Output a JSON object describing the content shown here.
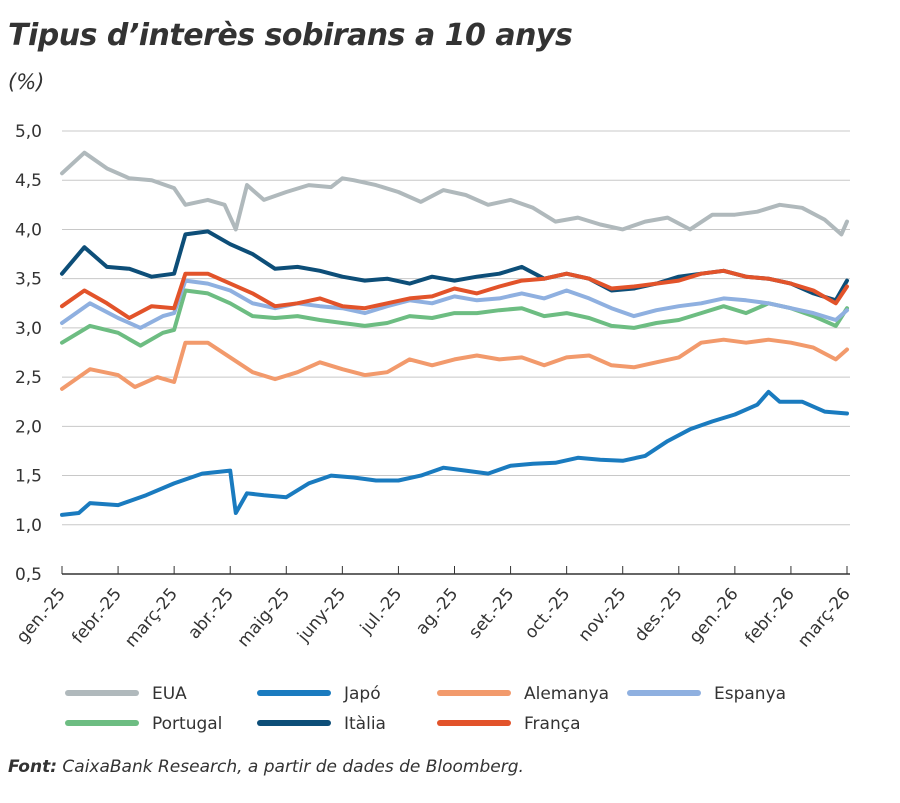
{
  "chart_data": {
    "type": "line",
    "title": "Tipus d’interès sobirans a 10 anys",
    "ylabel": "(%)",
    "xlabel": "",
    "ylim": [
      0.5,
      5.0
    ],
    "yticks": [
      "5,0",
      "4,5",
      "4,0",
      "3,5",
      "3,0",
      "2,5",
      "2,0",
      "1,5",
      "1,0",
      "0,5"
    ],
    "ytick_values": [
      5.0,
      4.5,
      4.0,
      3.5,
      3.0,
      2.5,
      2.0,
      1.5,
      1.0,
      0.5
    ],
    "xticks": [
      "gen.-25",
      "febr.-25",
      "març-25",
      "abr.-25",
      "maig-25",
      "juny-25",
      "jul.-25",
      "ag.-25",
      "set.-25",
      "oct.-25",
      "nov.-25",
      "des.-25",
      "gen.-26",
      "febr.-26",
      "març-26"
    ],
    "xlim": [
      0,
      14
    ],
    "grid": "horizontal",
    "legend_position": "bottom",
    "series": [
      {
        "name": "EUA",
        "color": "#b0b9bc",
        "points": [
          [
            0,
            4.57
          ],
          [
            0.4,
            4.78
          ],
          [
            0.8,
            4.62
          ],
          [
            1.2,
            4.52
          ],
          [
            1.6,
            4.5
          ],
          [
            2.0,
            4.42
          ],
          [
            2.2,
            4.25
          ],
          [
            2.6,
            4.3
          ],
          [
            2.9,
            4.25
          ],
          [
            3.1,
            4.0
          ],
          [
            3.3,
            4.45
          ],
          [
            3.6,
            4.3
          ],
          [
            4.0,
            4.38
          ],
          [
            4.4,
            4.45
          ],
          [
            4.8,
            4.43
          ],
          [
            5.0,
            4.52
          ],
          [
            5.2,
            4.5
          ],
          [
            5.6,
            4.45
          ],
          [
            6.0,
            4.38
          ],
          [
            6.4,
            4.28
          ],
          [
            6.8,
            4.4
          ],
          [
            7.2,
            4.35
          ],
          [
            7.6,
            4.25
          ],
          [
            8.0,
            4.3
          ],
          [
            8.4,
            4.22
          ],
          [
            8.8,
            4.08
          ],
          [
            9.2,
            4.12
          ],
          [
            9.6,
            4.05
          ],
          [
            10.0,
            4.0
          ],
          [
            10.4,
            4.08
          ],
          [
            10.8,
            4.12
          ],
          [
            11.2,
            4.0
          ],
          [
            11.6,
            4.15
          ],
          [
            12.0,
            4.15
          ],
          [
            12.4,
            4.18
          ],
          [
            12.8,
            4.25
          ],
          [
            13.2,
            4.22
          ],
          [
            13.6,
            4.1
          ],
          [
            13.9,
            3.95
          ],
          [
            14.0,
            4.08
          ]
        ]
      },
      {
        "name": "Japó",
        "color": "#1a7bbf",
        "points": [
          [
            0,
            1.1
          ],
          [
            0.3,
            1.12
          ],
          [
            0.5,
            1.22
          ],
          [
            1.0,
            1.2
          ],
          [
            1.5,
            1.3
          ],
          [
            2.0,
            1.42
          ],
          [
            2.5,
            1.52
          ],
          [
            3.0,
            1.55
          ],
          [
            3.1,
            1.12
          ],
          [
            3.3,
            1.32
          ],
          [
            3.6,
            1.3
          ],
          [
            4.0,
            1.28
          ],
          [
            4.4,
            1.42
          ],
          [
            4.8,
            1.5
          ],
          [
            5.2,
            1.48
          ],
          [
            5.6,
            1.45
          ],
          [
            6.0,
            1.45
          ],
          [
            6.4,
            1.5
          ],
          [
            6.8,
            1.58
          ],
          [
            7.2,
            1.55
          ],
          [
            7.6,
            1.52
          ],
          [
            8.0,
            1.6
          ],
          [
            8.4,
            1.62
          ],
          [
            8.8,
            1.63
          ],
          [
            9.2,
            1.68
          ],
          [
            9.6,
            1.66
          ],
          [
            10.0,
            1.65
          ],
          [
            10.4,
            1.7
          ],
          [
            10.8,
            1.85
          ],
          [
            11.2,
            1.97
          ],
          [
            11.6,
            2.05
          ],
          [
            12.0,
            2.12
          ],
          [
            12.4,
            2.22
          ],
          [
            12.6,
            2.35
          ],
          [
            12.8,
            2.25
          ],
          [
            13.2,
            2.25
          ],
          [
            13.6,
            2.15
          ],
          [
            14.0,
            2.13
          ]
        ]
      },
      {
        "name": "Alemanya",
        "color": "#f29a6c",
        "points": [
          [
            0,
            2.38
          ],
          [
            0.5,
            2.58
          ],
          [
            1.0,
            2.52
          ],
          [
            1.3,
            2.4
          ],
          [
            1.7,
            2.5
          ],
          [
            2.0,
            2.45
          ],
          [
            2.2,
            2.85
          ],
          [
            2.6,
            2.85
          ],
          [
            3.0,
            2.7
          ],
          [
            3.4,
            2.55
          ],
          [
            3.8,
            2.48
          ],
          [
            4.2,
            2.55
          ],
          [
            4.6,
            2.65
          ],
          [
            5.0,
            2.58
          ],
          [
            5.4,
            2.52
          ],
          [
            5.8,
            2.55
          ],
          [
            6.2,
            2.68
          ],
          [
            6.6,
            2.62
          ],
          [
            7.0,
            2.68
          ],
          [
            7.4,
            2.72
          ],
          [
            7.8,
            2.68
          ],
          [
            8.2,
            2.7
          ],
          [
            8.6,
            2.62
          ],
          [
            9.0,
            2.7
          ],
          [
            9.4,
            2.72
          ],
          [
            9.8,
            2.62
          ],
          [
            10.2,
            2.6
          ],
          [
            10.6,
            2.65
          ],
          [
            11.0,
            2.7
          ],
          [
            11.4,
            2.85
          ],
          [
            11.8,
            2.88
          ],
          [
            12.2,
            2.85
          ],
          [
            12.6,
            2.88
          ],
          [
            13.0,
            2.85
          ],
          [
            13.4,
            2.8
          ],
          [
            13.8,
            2.68
          ],
          [
            14.0,
            2.78
          ]
        ]
      },
      {
        "name": "Espanya",
        "color": "#8fb0e0",
        "points": [
          [
            0,
            3.05
          ],
          [
            0.5,
            3.25
          ],
          [
            1.0,
            3.1
          ],
          [
            1.4,
            3.0
          ],
          [
            1.8,
            3.12
          ],
          [
            2.0,
            3.15
          ],
          [
            2.2,
            3.48
          ],
          [
            2.6,
            3.45
          ],
          [
            3.0,
            3.38
          ],
          [
            3.4,
            3.25
          ],
          [
            3.8,
            3.2
          ],
          [
            4.2,
            3.25
          ],
          [
            4.6,
            3.22
          ],
          [
            5.0,
            3.2
          ],
          [
            5.4,
            3.15
          ],
          [
            5.8,
            3.22
          ],
          [
            6.2,
            3.28
          ],
          [
            6.6,
            3.25
          ],
          [
            7.0,
            3.32
          ],
          [
            7.4,
            3.28
          ],
          [
            7.8,
            3.3
          ],
          [
            8.2,
            3.35
          ],
          [
            8.6,
            3.3
          ],
          [
            9.0,
            3.38
          ],
          [
            9.4,
            3.3
          ],
          [
            9.8,
            3.2
          ],
          [
            10.2,
            3.12
          ],
          [
            10.6,
            3.18
          ],
          [
            11.0,
            3.22
          ],
          [
            11.4,
            3.25
          ],
          [
            11.8,
            3.3
          ],
          [
            12.2,
            3.28
          ],
          [
            12.6,
            3.25
          ],
          [
            13.0,
            3.2
          ],
          [
            13.4,
            3.15
          ],
          [
            13.8,
            3.08
          ],
          [
            14.0,
            3.18
          ]
        ]
      },
      {
        "name": "Portugal",
        "color": "#6dbd82",
        "points": [
          [
            0,
            2.85
          ],
          [
            0.5,
            3.02
          ],
          [
            1.0,
            2.95
          ],
          [
            1.4,
            2.82
          ],
          [
            1.8,
            2.95
          ],
          [
            2.0,
            2.98
          ],
          [
            2.2,
            3.38
          ],
          [
            2.6,
            3.35
          ],
          [
            3.0,
            3.25
          ],
          [
            3.4,
            3.12
          ],
          [
            3.8,
            3.1
          ],
          [
            4.2,
            3.12
          ],
          [
            4.6,
            3.08
          ],
          [
            5.0,
            3.05
          ],
          [
            5.4,
            3.02
          ],
          [
            5.8,
            3.05
          ],
          [
            6.2,
            3.12
          ],
          [
            6.6,
            3.1
          ],
          [
            7.0,
            3.15
          ],
          [
            7.4,
            3.15
          ],
          [
            7.8,
            3.18
          ],
          [
            8.2,
            3.2
          ],
          [
            8.6,
            3.12
          ],
          [
            9.0,
            3.15
          ],
          [
            9.4,
            3.1
          ],
          [
            9.8,
            3.02
          ],
          [
            10.2,
            3.0
          ],
          [
            10.6,
            3.05
          ],
          [
            11.0,
            3.08
          ],
          [
            11.4,
            3.15
          ],
          [
            11.8,
            3.22
          ],
          [
            12.2,
            3.15
          ],
          [
            12.6,
            3.25
          ],
          [
            13.0,
            3.2
          ],
          [
            13.4,
            3.12
          ],
          [
            13.8,
            3.02
          ],
          [
            14.0,
            3.2
          ]
        ]
      },
      {
        "name": "Itàlia",
        "color": "#0d4e78",
        "points": [
          [
            0,
            3.55
          ],
          [
            0.4,
            3.82
          ],
          [
            0.8,
            3.62
          ],
          [
            1.2,
            3.6
          ],
          [
            1.6,
            3.52
          ],
          [
            2.0,
            3.55
          ],
          [
            2.2,
            3.95
          ],
          [
            2.6,
            3.98
          ],
          [
            3.0,
            3.85
          ],
          [
            3.4,
            3.75
          ],
          [
            3.8,
            3.6
          ],
          [
            4.2,
            3.62
          ],
          [
            4.6,
            3.58
          ],
          [
            5.0,
            3.52
          ],
          [
            5.4,
            3.48
          ],
          [
            5.8,
            3.5
          ],
          [
            6.2,
            3.45
          ],
          [
            6.6,
            3.52
          ],
          [
            7.0,
            3.48
          ],
          [
            7.4,
            3.52
          ],
          [
            7.8,
            3.55
          ],
          [
            8.2,
            3.62
          ],
          [
            8.6,
            3.5
          ],
          [
            9.0,
            3.55
          ],
          [
            9.4,
            3.5
          ],
          [
            9.8,
            3.38
          ],
          [
            10.2,
            3.4
          ],
          [
            10.6,
            3.45
          ],
          [
            11.0,
            3.52
          ],
          [
            11.4,
            3.55
          ],
          [
            11.8,
            3.58
          ],
          [
            12.2,
            3.52
          ],
          [
            12.6,
            3.5
          ],
          [
            13.0,
            3.45
          ],
          [
            13.4,
            3.35
          ],
          [
            13.8,
            3.28
          ],
          [
            14.0,
            3.48
          ]
        ]
      },
      {
        "name": "França",
        "color": "#e2532a",
        "points": [
          [
            0,
            3.22
          ],
          [
            0.4,
            3.38
          ],
          [
            0.8,
            3.25
          ],
          [
            1.2,
            3.1
          ],
          [
            1.6,
            3.22
          ],
          [
            2.0,
            3.2
          ],
          [
            2.2,
            3.55
          ],
          [
            2.6,
            3.55
          ],
          [
            3.0,
            3.45
          ],
          [
            3.4,
            3.35
          ],
          [
            3.8,
            3.22
          ],
          [
            4.2,
            3.25
          ],
          [
            4.6,
            3.3
          ],
          [
            5.0,
            3.22
          ],
          [
            5.4,
            3.2
          ],
          [
            5.8,
            3.25
          ],
          [
            6.2,
            3.3
          ],
          [
            6.6,
            3.32
          ],
          [
            7.0,
            3.4
          ],
          [
            7.4,
            3.35
          ],
          [
            7.8,
            3.42
          ],
          [
            8.2,
            3.48
          ],
          [
            8.6,
            3.5
          ],
          [
            9.0,
            3.55
          ],
          [
            9.4,
            3.5
          ],
          [
            9.8,
            3.4
          ],
          [
            10.2,
            3.42
          ],
          [
            10.6,
            3.45
          ],
          [
            11.0,
            3.48
          ],
          [
            11.4,
            3.55
          ],
          [
            11.8,
            3.58
          ],
          [
            12.2,
            3.52
          ],
          [
            12.6,
            3.5
          ],
          [
            13.0,
            3.45
          ],
          [
            13.4,
            3.38
          ],
          [
            13.8,
            3.25
          ],
          [
            14.0,
            3.42
          ]
        ]
      }
    ],
    "draw_order": [
      "EUA",
      "Japó",
      "Alemanya",
      "Portugal",
      "Espanya",
      "Itàlia",
      "França"
    ],
    "legend_order": [
      "EUA",
      "Japó",
      "Alemanya",
      "Espanya",
      "Portugal",
      "Itàlia",
      "França"
    ]
  },
  "source": {
    "label": "Font:",
    "text": " CaixaBank Research, a partir de dades de Bloomberg."
  }
}
